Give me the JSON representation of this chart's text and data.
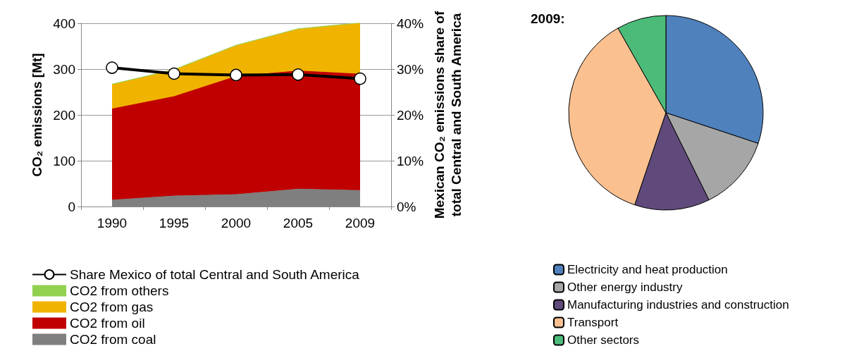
{
  "chart_data": [
    {
      "type": "area",
      "stacked": true,
      "categories": [
        "1990",
        "1995",
        "2000",
        "2005",
        "2009"
      ],
      "ylabel": "CO₂ emissions [Mt]",
      "y2label": "Mexican CO₂ emissions share of total Central and South America",
      "ylim": [
        0,
        400
      ],
      "yticks": [
        0,
        100,
        200,
        300,
        400
      ],
      "y2lim": [
        0,
        40
      ],
      "y2ticks": [
        {
          "value": 0,
          "label": "0%"
        },
        {
          "value": 10,
          "label": "10%"
        },
        {
          "value": 20,
          "label": "20%"
        },
        {
          "value": 30,
          "label": "30%"
        },
        {
          "value": 40,
          "label": "40%"
        }
      ],
      "grid": "y",
      "legend": "bottom left",
      "series": [
        {
          "name": "CO2 from coal",
          "color": "#7f7f7f",
          "values": [
            14,
            23,
            26,
            38,
            35
          ]
        },
        {
          "name": "CO2 from oil",
          "color": "#c00000",
          "values": [
            199,
            217,
            258,
            258,
            254
          ]
        },
        {
          "name": "CO2 from gas",
          "color": "#f0b400",
          "values": [
            53,
            58,
            67,
            91,
            111
          ]
        },
        {
          "name": "CO2 from others",
          "color": "#92d050",
          "values": [
            1,
            1,
            1,
            1,
            1
          ]
        },
        {
          "name": "Share Mexico of total Central and South America",
          "type": "line",
          "axis": "y2",
          "marker": "circle",
          "color": "#000000",
          "values": [
            30.3,
            29.0,
            28.7,
            28.8,
            27.9
          ]
        }
      ]
    },
    {
      "type": "pie",
      "title": "2009:",
      "legend": "bottom left",
      "categories": [
        "Electricity and heat production",
        "Other energy industry",
        "Manufacturing industries and construction",
        "Transport",
        "Other sectors"
      ],
      "values": [
        30.1,
        12.6,
        12.5,
        36.6,
        8.2
      ],
      "colors": [
        "#4f81bd",
        "#a6a6a6",
        "#604a7b",
        "#fac090",
        "#4cbb7a"
      ]
    }
  ]
}
